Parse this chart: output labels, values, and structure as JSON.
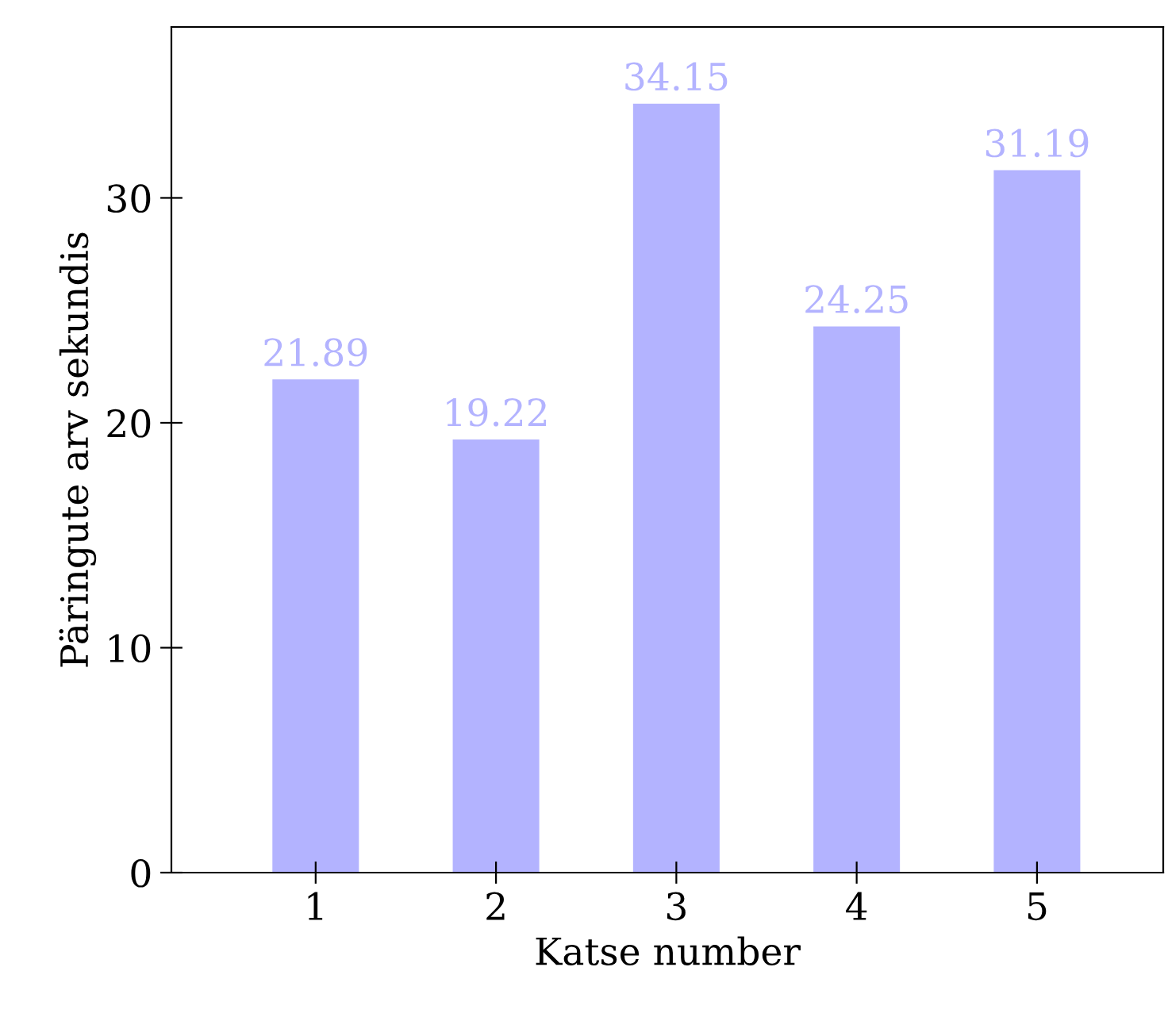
{
  "chart_data": {
    "type": "bar",
    "xlabel": "Katse number",
    "ylabel": "Päringute arv sekundis",
    "x": [
      1,
      2,
      3,
      4,
      5
    ],
    "series": [
      {
        "color": "#b3b3ff",
        "values": [
          21.89,
          19.22,
          34.15,
          24.25,
          31.19
        ]
      }
    ],
    "data_labels": true,
    "xlim": [
      0.2,
      5.7
    ],
    "xticks": [
      1,
      2,
      3,
      4,
      5
    ],
    "ylim": [
      0,
      37.6
    ],
    "yticks": [
      0,
      10,
      20,
      30
    ],
    "grid": false,
    "legend": false
  }
}
